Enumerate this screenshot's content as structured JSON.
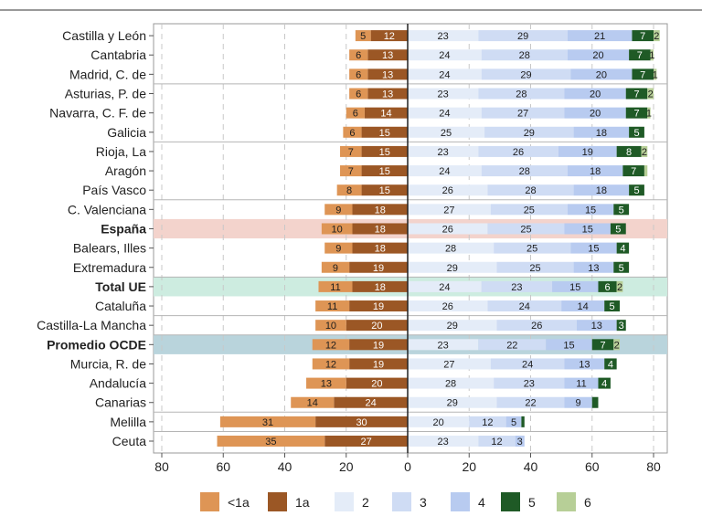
{
  "chart_data": {
    "type": "bar",
    "orientation": "horizontal-diverging",
    "title": "",
    "xlabel": "",
    "ylabel": "",
    "xlim": [
      -80,
      85
    ],
    "x_ticks": [
      "80",
      "60",
      "40",
      "20",
      "0",
      "20",
      "40",
      "60",
      "80"
    ],
    "categories": [
      "Castilla y León",
      "Cantabria",
      "Madrid, C. de",
      "Asturias, P. de",
      "Navarra, C. F. de",
      "Galicia",
      "Rioja, La",
      "Aragón",
      "País Vasco",
      "C. Valenciana",
      "España",
      "Balears, Illes",
      "Extremadura",
      "Total UE",
      "Cataluña",
      "Castilla-La Mancha",
      "Promedio OCDE",
      "Murcia, R. de",
      "Andalucía",
      "Canarias",
      "Melilla",
      "Ceuta"
    ],
    "highlight": {
      "España": "#f3d3cc",
      "Total UE": "#cdece0",
      "Promedio OCDE": "#b9d4dc"
    },
    "bold_categories": [
      "España",
      "Total UE",
      "Promedio OCDE"
    ],
    "legend": [
      "<1a",
      "1a",
      "2",
      "3",
      "4",
      "5",
      "6"
    ],
    "colors": {
      "<1a": "#de9555",
      "1a": "#9b5725",
      "2": "#e4ecf8",
      "3": "#cfdcf4",
      "4": "#b8cbf0",
      "5": "#1f5a26",
      "6": "#b7cf97"
    },
    "series": [
      {
        "name": "<1a",
        "side": "negative",
        "values": [
          5,
          6,
          6,
          6,
          6,
          6,
          7,
          7,
          8,
          9,
          10,
          9,
          9,
          11,
          11,
          10,
          12,
          12,
          13,
          14,
          31,
          35
        ]
      },
      {
        "name": "1a",
        "side": "negative",
        "values": [
          12,
          13,
          13,
          13,
          14,
          15,
          15,
          15,
          15,
          18,
          18,
          18,
          19,
          18,
          19,
          20,
          19,
          19,
          20,
          24,
          30,
          27
        ]
      },
      {
        "name": "2",
        "side": "positive",
        "values": [
          23,
          24,
          24,
          23,
          24,
          25,
          23,
          24,
          26,
          27,
          26,
          28,
          29,
          24,
          26,
          29,
          23,
          27,
          28,
          29,
          20,
          23
        ]
      },
      {
        "name": "3",
        "side": "positive",
        "values": [
          29,
          28,
          29,
          28,
          27,
          29,
          26,
          28,
          28,
          25,
          25,
          25,
          25,
          23,
          24,
          26,
          22,
          24,
          23,
          22,
          12,
          12
        ]
      },
      {
        "name": "4",
        "side": "positive",
        "values": [
          21,
          20,
          20,
          20,
          20,
          18,
          19,
          18,
          18,
          15,
          15,
          15,
          13,
          15,
          14,
          13,
          15,
          13,
          11,
          9,
          5,
          3
        ]
      },
      {
        "name": "5",
        "side": "positive",
        "values": [
          7,
          7,
          7,
          7,
          7,
          5,
          8,
          7,
          5,
          5,
          5,
          4,
          5,
          6,
          5,
          3,
          7,
          4,
          4,
          2,
          1,
          0
        ]
      },
      {
        "name": "6",
        "side": "positive",
        "values": [
          2,
          1,
          1,
          2,
          1,
          0,
          2,
          1,
          0,
          0,
          0,
          0,
          0,
          2,
          0,
          0,
          2,
          0,
          0,
          0,
          0,
          0
        ]
      }
    ],
    "labels_shown": {
      "5": [
        true,
        true,
        true,
        true,
        true,
        true,
        true,
        true,
        true,
        true,
        true,
        true,
        true,
        true,
        true,
        true,
        true,
        true,
        true,
        false,
        false,
        false
      ],
      "6": [
        true,
        true,
        true,
        true,
        true,
        false,
        true,
        false,
        false,
        false,
        false,
        false,
        false,
        true,
        false,
        false,
        true,
        false,
        false,
        false,
        false,
        false
      ]
    },
    "group_separators_after": [
      "Madrid, C. de",
      "Galicia",
      "País Vasco",
      "Extremadura",
      "Cataluña",
      "Castilla-La Mancha",
      "Canarias",
      "Melilla"
    ],
    "grid": "vertical dashed",
    "legend_position": "bottom"
  }
}
